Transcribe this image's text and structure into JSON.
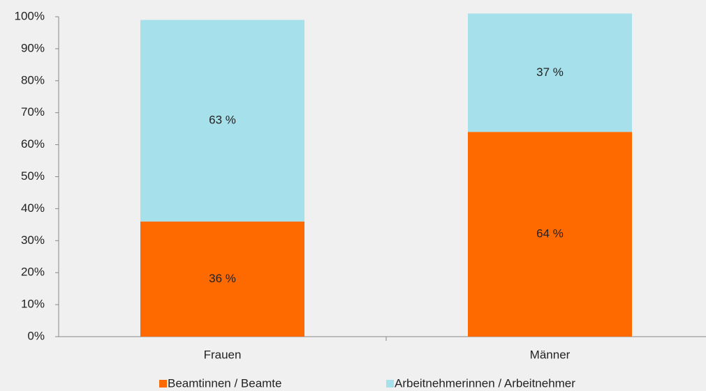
{
  "chart_data": {
    "type": "stacked_bar",
    "categories": [
      "Frauen",
      "Männer"
    ],
    "series": [
      {
        "name": "Beamtinnen / Beamte",
        "color": "#ff6a00",
        "values": [
          36,
          64
        ],
        "value_labels": [
          "36 %",
          "64 %"
        ]
      },
      {
        "name": "Arbeitnehmerinnen / Arbeitnehmer",
        "color": "#a6e0ea",
        "values": [
          63,
          37
        ],
        "value_labels": [
          "63 %",
          "37 %"
        ]
      }
    ],
    "ylim": [
      0,
      100
    ],
    "yticks": [
      {
        "value": 0,
        "label": "0%"
      },
      {
        "value": 10,
        "label": "10%"
      },
      {
        "value": 20,
        "label": "20%"
      },
      {
        "value": 30,
        "label": "30%"
      },
      {
        "value": 40,
        "label": "40%"
      },
      {
        "value": 50,
        "label": "50%"
      },
      {
        "value": 60,
        "label": "60%"
      },
      {
        "value": 70,
        "label": "70%"
      },
      {
        "value": 80,
        "label": "80%"
      },
      {
        "value": 90,
        "label": "90%"
      },
      {
        "value": 100,
        "label": "100%"
      }
    ],
    "legend": "bottom"
  }
}
